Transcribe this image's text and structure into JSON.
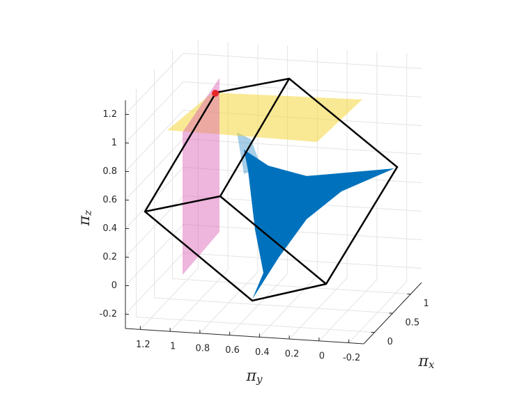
{
  "chart_data": {
    "type": "scatter3d",
    "xlabel": {
      "symbol": "π",
      "subscript": "x"
    },
    "ylabel": {
      "symbol": "π",
      "subscript": "y"
    },
    "zlabel": {
      "symbol": "π",
      "subscript": "z"
    },
    "xlim": [
      -0.3,
      1.3
    ],
    "xticks": [
      0,
      0.5,
      1
    ],
    "ylim": [
      -0.3,
      1.3
    ],
    "yticks": [
      -0.2,
      0,
      0.2,
      0.4,
      0.6,
      0.8,
      1,
      1.2
    ],
    "zlim": [
      -0.3,
      1.3
    ],
    "zticks": [
      -0.2,
      0,
      0.2,
      0.4,
      0.6,
      0.8,
      1,
      1.2
    ],
    "grid": true,
    "color": "#0072bd"
  }
}
